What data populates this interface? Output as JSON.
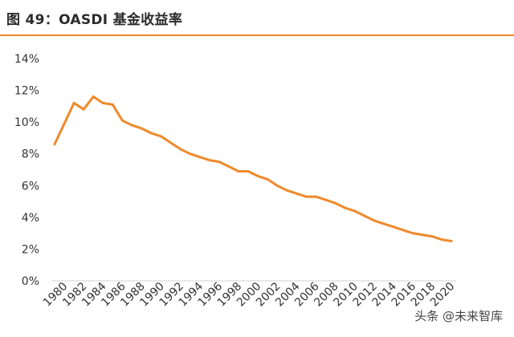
{
  "header": {
    "title": "图 49：OASDI 基金收益率"
  },
  "watermark": "头条 @未来智库",
  "chart_data": {
    "type": "line",
    "title": "图 49：OASDI 基金收益率",
    "xlabel": "",
    "ylabel": "",
    "ylim": [
      0,
      14
    ],
    "yticks": [
      "0%",
      "2%",
      "4%",
      "6%",
      "8%",
      "10%",
      "12%",
      "14%"
    ],
    "xticks": [
      "1980",
      "1982",
      "1984",
      "1986",
      "1988",
      "1990",
      "1992",
      "1994",
      "1996",
      "1998",
      "2000",
      "2002",
      "2004",
      "2006",
      "2008",
      "2010",
      "2012",
      "2014",
      "2016",
      "2018",
      "2020"
    ],
    "grid": false,
    "legend": "none",
    "line_color": "#ee8a2c",
    "series": [
      {
        "x": [
          1980,
          1981,
          1982,
          1983,
          1984,
          1985,
          1986,
          1987,
          1988,
          1989,
          1990,
          1991,
          1992,
          1993,
          1994,
          1995,
          1996,
          1997,
          1998,
          1999,
          2000,
          2001,
          2002,
          2003,
          2004,
          2005,
          2006,
          2007,
          2008,
          2009,
          2010,
          2011,
          2012,
          2013,
          2014,
          2015,
          2016,
          2017,
          2018,
          2019,
          2020,
          2021
        ],
        "values": [
          8.6,
          9.9,
          11.2,
          10.8,
          11.6,
          11.2,
          11.1,
          10.1,
          9.8,
          9.6,
          9.3,
          9.1,
          8.7,
          8.3,
          8.0,
          7.8,
          7.6,
          7.5,
          7.2,
          6.9,
          6.9,
          6.6,
          6.4,
          6.0,
          5.7,
          5.5,
          5.3,
          5.3,
          5.1,
          4.9,
          4.6,
          4.4,
          4.1,
          3.8,
          3.6,
          3.4,
          3.2,
          3.0,
          2.9,
          2.8,
          2.6,
          2.5
        ]
      }
    ]
  }
}
